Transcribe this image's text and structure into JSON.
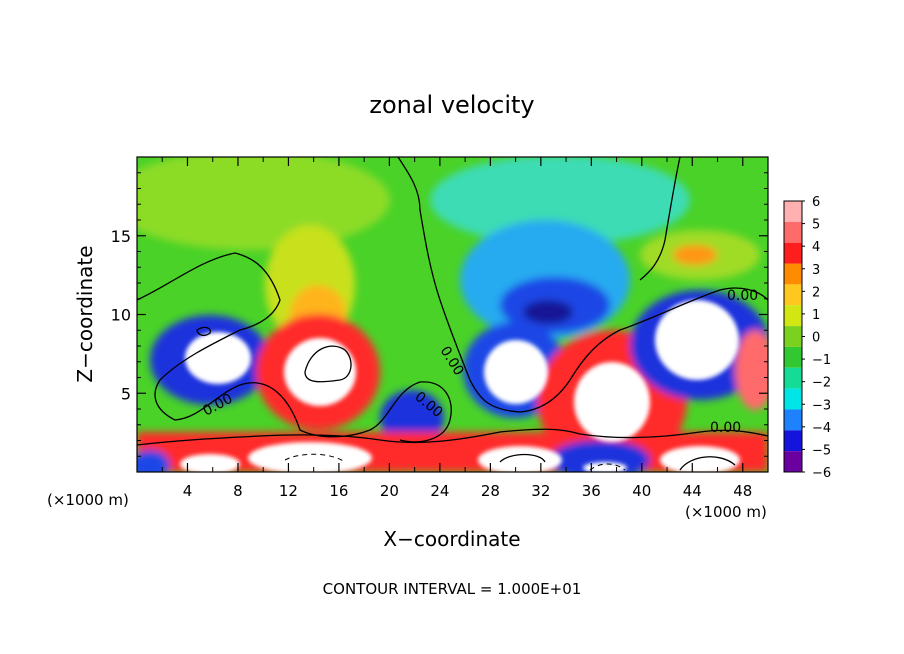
{
  "chart_data": {
    "type": "heatmap",
    "title": "zonal velocity",
    "xlabel": "X−coordinate",
    "ylabel": "Z−coordinate",
    "x_unit_left": "(×1000 m)",
    "x_unit_right": "(×1000 m)",
    "xlim": [
      0,
      50
    ],
    "ylim": [
      0,
      20
    ],
    "x_ticks": [
      "4",
      "8",
      "12",
      "16",
      "20",
      "24",
      "28",
      "32",
      "36",
      "40",
      "44",
      "48"
    ],
    "x_tick_values": [
      4,
      8,
      12,
      16,
      20,
      24,
      28,
      32,
      36,
      40,
      44,
      48
    ],
    "y_ticks": [
      "5",
      "10",
      "15"
    ],
    "y_tick_values": [
      5,
      10,
      15
    ],
    "colorbar": {
      "labels": [
        "6",
        "5",
        "4",
        "3",
        "2",
        "1",
        "0",
        "−1",
        "−2",
        "−3",
        "−4",
        "−5",
        "−6"
      ],
      "min": -6,
      "max": 6,
      "colors": [
        "#ffb0b0",
        "#ff6a6a",
        "#ff1e1e",
        "#ff8c00",
        "#ffc81e",
        "#d2e614",
        "#7ad21e",
        "#32c832",
        "#14dc96",
        "#00e6e6",
        "#1e82ff",
        "#1414dc",
        "#6a00a0"
      ]
    },
    "contour_labels": [
      "0.00",
      "0.00",
      "0.00",
      "0.00",
      "0.00"
    ],
    "footer": "CONTOUR INTERVAL = 1.000E+01"
  }
}
